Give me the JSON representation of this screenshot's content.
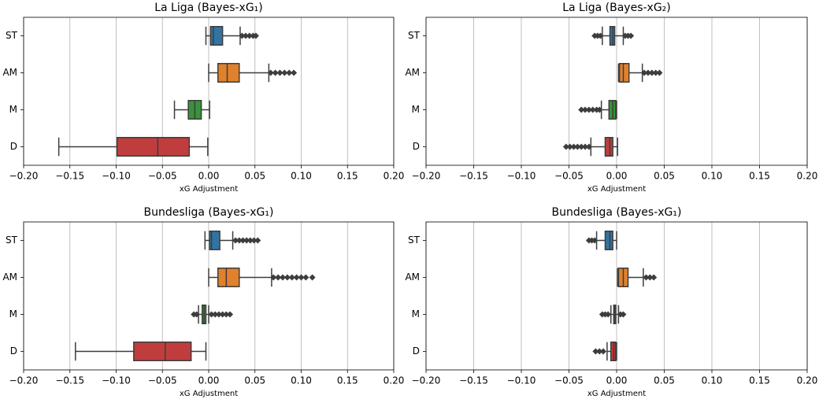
{
  "chart_data": [
    {
      "type": "box",
      "title": "La Liga (Bayes-xG₁)",
      "xlabel": "xG Adjustment",
      "categories": [
        "ST",
        "AM",
        "M",
        "D"
      ],
      "colors": [
        "#3274a1",
        "#e1812c",
        "#3a923a",
        "#c03d3e"
      ],
      "boxes": [
        {
          "whislo": -0.003,
          "q1": 0.002,
          "med": 0.005,
          "q3": 0.015,
          "whishi": 0.034,
          "fliers": [
            0.036,
            0.04,
            0.044,
            0.048,
            0.051
          ]
        },
        {
          "whislo": 0,
          "q1": 0.01,
          "med": 0.02,
          "q3": 0.033,
          "whishi": 0.065,
          "fliers": [
            0.067,
            0.072,
            0.077,
            0.082,
            0.087,
            0.092
          ]
        },
        {
          "whislo": -0.037,
          "q1": -0.022,
          "med": -0.015,
          "q3": -0.008,
          "whishi": 0.001,
          "fliers": []
        },
        {
          "whislo": -0.162,
          "q1": -0.099,
          "med": -0.055,
          "q3": -0.021,
          "whishi": -0.001,
          "fliers": []
        }
      ],
      "xlim": [
        -0.2,
        0.2
      ],
      "xticks": [
        {
          "value": -0.2,
          "label": "−0.20"
        },
        {
          "value": -0.15,
          "label": "−0.15"
        },
        {
          "value": -0.1,
          "label": "−0.10"
        },
        {
          "value": -0.05,
          "label": "−0.05"
        },
        {
          "value": 0,
          "label": "0.00"
        },
        {
          "value": 0.05,
          "label": "0.05"
        },
        {
          "value": 0.1,
          "label": "0.10"
        },
        {
          "value": 0.15,
          "label": "0.15"
        },
        {
          "value": 0.2,
          "label": "0.20"
        }
      ],
      "grid": true
    },
    {
      "type": "box",
      "title": "La Liga (Bayes-xG₂)",
      "xlabel": "xG Adjustment",
      "categories": [
        "ST",
        "AM",
        "M",
        "D"
      ],
      "colors": [
        "#3274a1",
        "#e1812c",
        "#3a923a",
        "#c03d3e"
      ],
      "boxes": [
        {
          "whislo": -0.015,
          "q1": -0.007,
          "med": -0.004,
          "q3": -0.002,
          "whishi": 0.007,
          "fliers": [
            -0.023,
            -0.02,
            -0.017,
            0.009,
            0.012,
            0.015
          ]
        },
        {
          "whislo": 0.002,
          "q1": 0.003,
          "med": 0.007,
          "q3": 0.013,
          "whishi": 0.027,
          "fliers": [
            0.029,
            0.033,
            0.037,
            0.041,
            0.045
          ]
        },
        {
          "whislo": -0.016,
          "q1": -0.008,
          "med": -0.004,
          "q3": -0.001,
          "whishi": 0,
          "fliers": [
            -0.037,
            -0.033,
            -0.029,
            -0.025,
            -0.021,
            -0.018
          ]
        },
        {
          "whislo": -0.027,
          "q1": -0.012,
          "med": -0.007,
          "q3": -0.004,
          "whishi": 0.001,
          "fliers": [
            -0.053,
            -0.049,
            -0.045,
            -0.041,
            -0.037,
            -0.033,
            -0.029
          ]
        }
      ],
      "xlim": [
        -0.2,
        0.2
      ],
      "xticks": [
        {
          "value": -0.2,
          "label": "−0.20"
        },
        {
          "value": -0.15,
          "label": "−0.15"
        },
        {
          "value": -0.1,
          "label": "−0.10"
        },
        {
          "value": -0.05,
          "label": "−0.05"
        },
        {
          "value": 0,
          "label": "0.00"
        },
        {
          "value": 0.05,
          "label": "0.05"
        },
        {
          "value": 0.1,
          "label": "0.10"
        },
        {
          "value": 0.15,
          "label": "0.15"
        },
        {
          "value": 0.2,
          "label": "0.20"
        }
      ],
      "grid": true
    },
    {
      "type": "box",
      "title": "Bundesliga (Bayes-xG₁)",
      "xlabel": "xG Adjustment",
      "categories": [
        "ST",
        "AM",
        "M",
        "D"
      ],
      "colors": [
        "#3274a1",
        "#e1812c",
        "#3a923a",
        "#c03d3e"
      ],
      "boxes": [
        {
          "whislo": -0.004,
          "q1": 0.001,
          "med": 0.003,
          "q3": 0.012,
          "whishi": 0.026,
          "fliers": [
            0.029,
            0.033,
            0.037,
            0.041,
            0.045,
            0.049,
            0.053
          ]
        },
        {
          "whislo": 0,
          "q1": 0.01,
          "med": 0.019,
          "q3": 0.033,
          "whishi": 0.068,
          "fliers": [
            0.07,
            0.075,
            0.08,
            0.085,
            0.09,
            0.095,
            0.1,
            0.105,
            0.112
          ]
        },
        {
          "whislo": -0.011,
          "q1": -0.007,
          "med": -0.005,
          "q3": -0.003,
          "whishi": 0,
          "fliers": [
            -0.016,
            -0.013,
            0.003,
            0.007,
            0.011,
            0.015,
            0.019,
            0.023
          ]
        },
        {
          "whislo": -0.144,
          "q1": -0.081,
          "med": -0.047,
          "q3": -0.019,
          "whishi": -0.003,
          "fliers": []
        }
      ],
      "xlim": [
        -0.2,
        0.2
      ],
      "xticks": [
        {
          "value": -0.2,
          "label": "−0.20"
        },
        {
          "value": -0.15,
          "label": "−0.15"
        },
        {
          "value": -0.1,
          "label": "−0.10"
        },
        {
          "value": -0.05,
          "label": "−0.05"
        },
        {
          "value": 0,
          "label": "0.00"
        },
        {
          "value": 0.05,
          "label": "0.05"
        },
        {
          "value": 0.1,
          "label": "0.10"
        },
        {
          "value": 0.15,
          "label": "0.15"
        },
        {
          "value": 0.2,
          "label": "0.20"
        }
      ],
      "grid": true
    },
    {
      "type": "box",
      "title": "Bundesliga (Bayes-xG₁)",
      "xlabel": "xG Adjustment",
      "categories": [
        "ST",
        "AM",
        "M",
        "D"
      ],
      "colors": [
        "#3274a1",
        "#e1812c",
        "#3a923a",
        "#c03d3e"
      ],
      "boxes": [
        {
          "whislo": -0.021,
          "q1": -0.012,
          "med": -0.007,
          "q3": -0.004,
          "whishi": 0,
          "fliers": [
            -0.029,
            -0.026,
            -0.023
          ]
        },
        {
          "whislo": 0.001,
          "q1": 0.002,
          "med": 0.007,
          "q3": 0.012,
          "whishi": 0.028,
          "fliers": [
            0.031,
            0.035,
            0.039
          ]
        },
        {
          "whislo": -0.006,
          "q1": -0.003,
          "med": -0.002,
          "q3": -0.001,
          "whishi": 0.002,
          "fliers": [
            -0.015,
            -0.012,
            -0.009,
            0.004,
            0.007
          ]
        },
        {
          "whislo": -0.01,
          "q1": -0.006,
          "med": -0.003,
          "q3": -0.001,
          "whishi": 0,
          "fliers": [
            -0.022,
            -0.018,
            -0.014
          ]
        }
      ],
      "xlim": [
        -0.2,
        0.2
      ],
      "xticks": [
        {
          "value": -0.2,
          "label": "−0.20"
        },
        {
          "value": -0.15,
          "label": "−0.15"
        },
        {
          "value": -0.1,
          "label": "−0.10"
        },
        {
          "value": -0.05,
          "label": "−0.05"
        },
        {
          "value": 0,
          "label": "0.00"
        },
        {
          "value": 0.05,
          "label": "0.05"
        },
        {
          "value": 0.1,
          "label": "0.10"
        },
        {
          "value": 0.15,
          "label": "0.15"
        },
        {
          "value": 0.2,
          "label": "0.20"
        }
      ],
      "grid": true
    }
  ]
}
